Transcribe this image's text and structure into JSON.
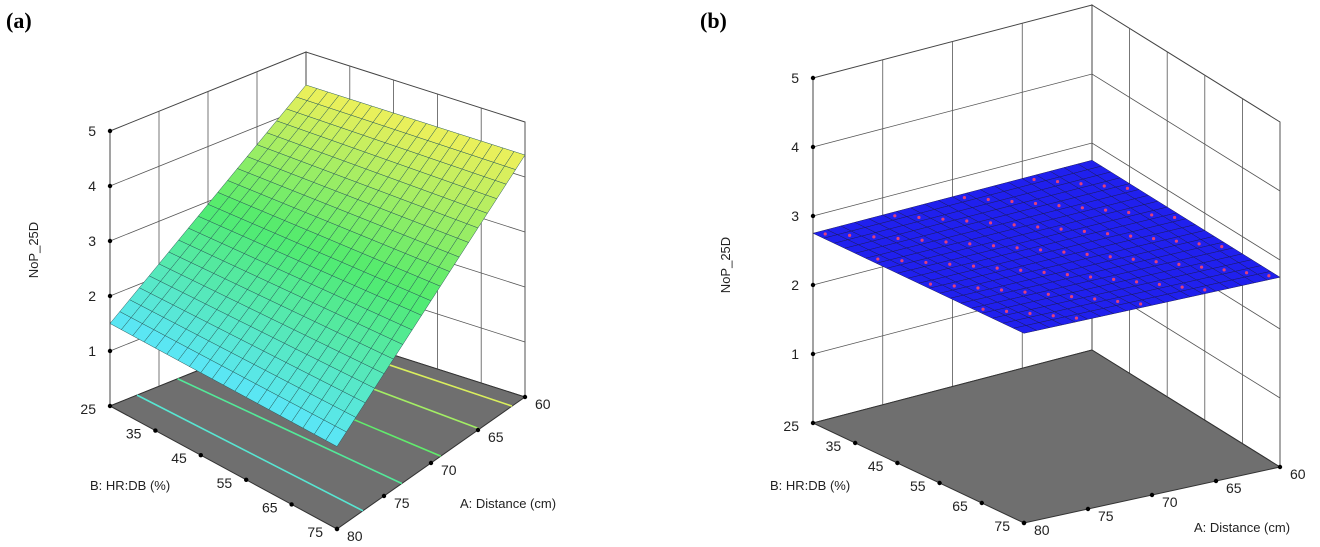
{
  "chart_data": [
    {
      "panel_label": "(a)",
      "type": "surface3d",
      "zlabel": "NoP_25D",
      "xlabel": "A: Distance (cm)",
      "ylabel": "B: HR:DB (%)",
      "x_ticks": [
        "60",
        "65",
        "70",
        "75",
        "80"
      ],
      "y_ticks": [
        "25",
        "35",
        "45",
        "55",
        "65",
        "75"
      ],
      "z_ticks": [
        "1",
        "2",
        "3",
        "4",
        "5"
      ],
      "xlim": [
        60,
        80
      ],
      "ylim": [
        25,
        75
      ],
      "zlim": [
        0,
        5
      ],
      "surface": {
        "kind": "plane",
        "z_at_x60": 4.4,
        "z_at_x80": 1.5,
        "y_effect": 0.0
      },
      "colormap": "cyan-green-yellow",
      "floor_contours": true
    },
    {
      "panel_label": "(b)",
      "type": "surface3d",
      "zlabel": "NoP_25D",
      "xlabel": "A: Distance (cm)",
      "ylabel": "B: HR:DB (%)",
      "x_ticks": [
        "60",
        "65",
        "70",
        "75",
        "80"
      ],
      "y_ticks": [
        "25",
        "35",
        "45",
        "55",
        "65",
        "75"
      ],
      "z_ticks": [
        "1",
        "2",
        "3",
        "4",
        "5"
      ],
      "xlim": [
        60,
        80
      ],
      "ylim": [
        25,
        75
      ],
      "zlim": [
        0,
        5
      ],
      "surface": {
        "kind": "plane",
        "z_at_x60": 2.75,
        "z_at_x80": 2.75,
        "y_effect": 0.0
      },
      "colormap": "blue",
      "floor_contours": false
    }
  ]
}
